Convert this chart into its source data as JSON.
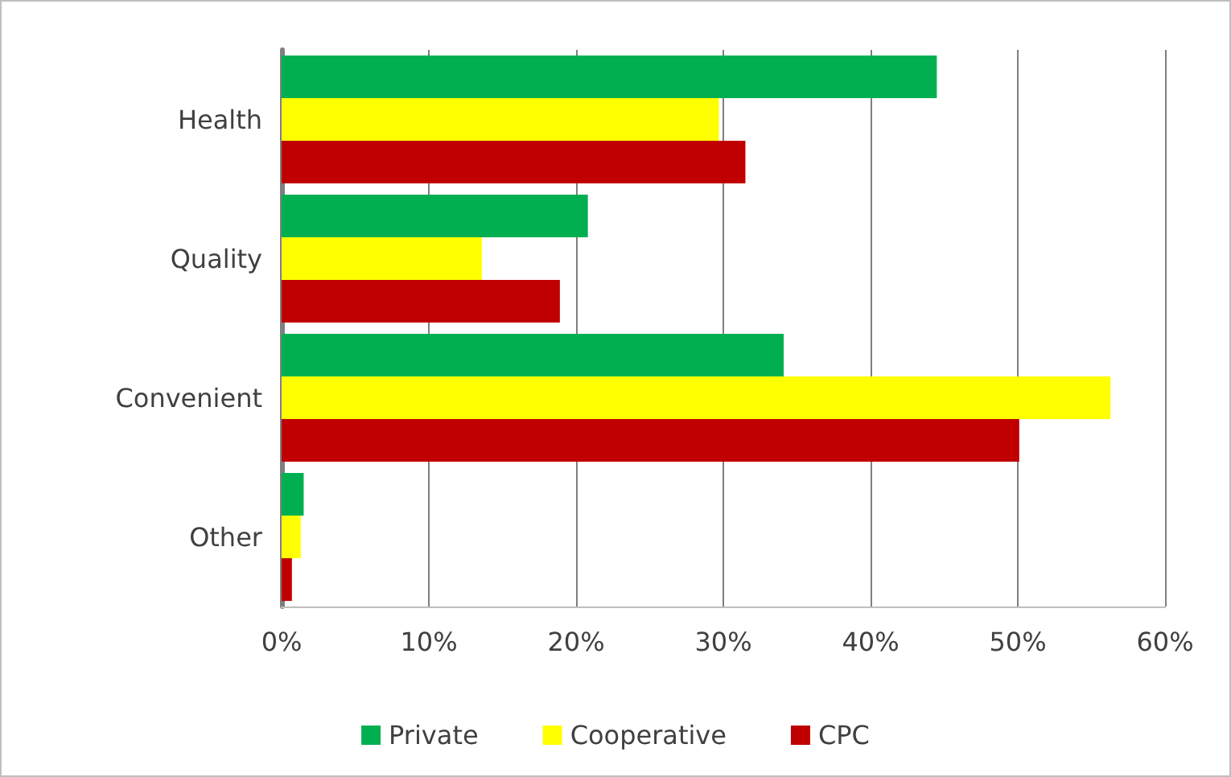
{
  "chart_data": {
    "type": "bar",
    "orientation": "horizontal",
    "categories": [
      "Health",
      "Quality",
      "Convenient",
      "Other"
    ],
    "series": [
      {
        "name": "Private",
        "color": "#00b050",
        "values": [
          44.5,
          20.8,
          34.1,
          1.5
        ]
      },
      {
        "name": "Cooperative",
        "color": "#ffff00",
        "values": [
          29.7,
          13.6,
          56.3,
          1.3
        ]
      },
      {
        "name": "CPC",
        "color": "#c00000",
        "values": [
          31.5,
          18.9,
          50.1,
          0.7
        ]
      }
    ],
    "xlim": [
      0,
      60
    ],
    "xticks": [
      {
        "value": 0,
        "label": "0%"
      },
      {
        "value": 10,
        "label": "10%"
      },
      {
        "value": 20,
        "label": "20%"
      },
      {
        "value": 30,
        "label": "30%"
      },
      {
        "value": 40,
        "label": "40%"
      },
      {
        "value": 50,
        "label": "50%"
      },
      {
        "value": 60,
        "label": "60%"
      }
    ],
    "grid": "x",
    "legend": "bottom"
  }
}
